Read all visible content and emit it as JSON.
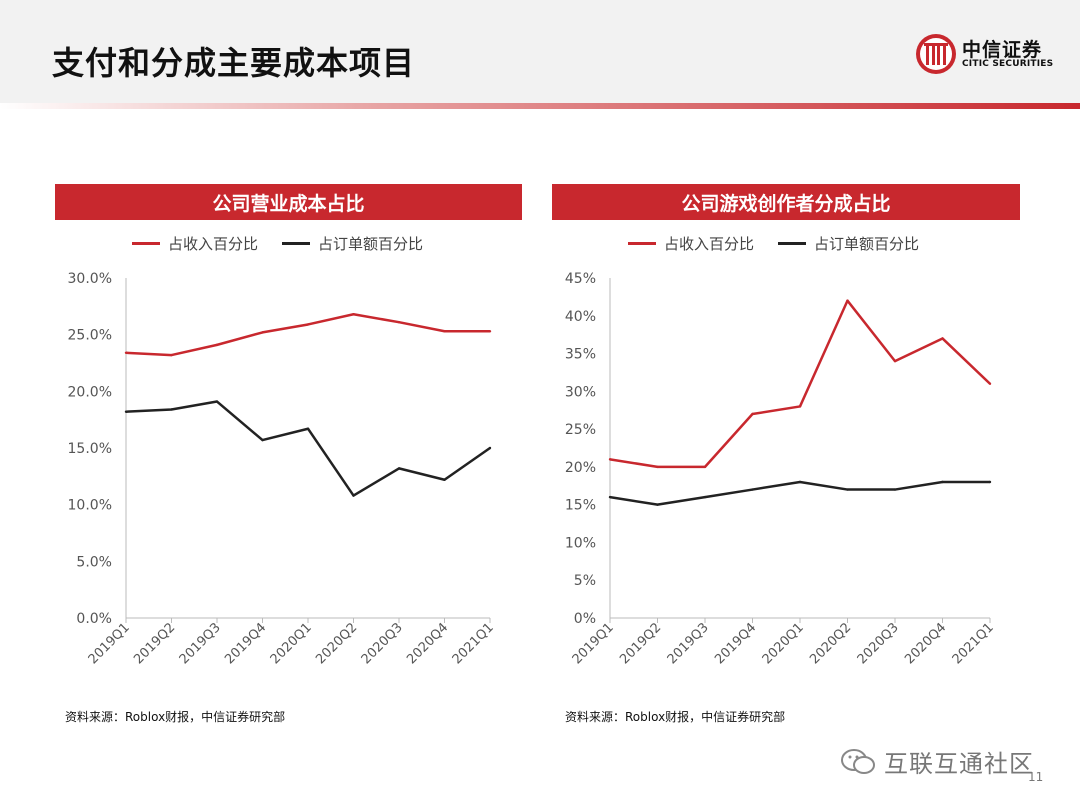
{
  "header": {
    "title": "支付和分成主要成本项目",
    "logo_cn": "中信证券",
    "logo_en": "CITIC SECURITIES"
  },
  "colors": {
    "red": "#c8282e",
    "black": "#222222"
  },
  "panels": [
    {
      "title": "公司营业成本占比",
      "source": "资料来源：Roblox财报，中信证券研究部",
      "legend": [
        "占收入百分比",
        "占订单额百分比"
      ]
    },
    {
      "title": "公司游戏创作者分成占比",
      "source": "资料来源：Roblox财报，中信证券研究部",
      "legend": [
        "占收入百分比",
        "占订单额百分比"
      ]
    }
  ],
  "chart_data": [
    {
      "type": "line",
      "title": "公司营业成本占比",
      "categories": [
        "2019Q1",
        "2019Q2",
        "2019Q3",
        "2019Q4",
        "2020Q1",
        "2020Q2",
        "2020Q3",
        "2020Q4",
        "2021Q1"
      ],
      "series": [
        {
          "name": "占收入百分比",
          "color": "#c8282e",
          "values": [
            23.4,
            23.2,
            24.1,
            25.2,
            25.9,
            26.8,
            26.1,
            25.3,
            25.3
          ]
        },
        {
          "name": "占订单额百分比",
          "color": "#222222",
          "values": [
            18.2,
            18.4,
            19.1,
            15.7,
            16.7,
            10.8,
            13.2,
            12.2,
            15.0
          ]
        }
      ],
      "ylim": [
        0,
        30
      ],
      "yticks": [
        0,
        5,
        10,
        15,
        20,
        25,
        30
      ],
      "ytick_labels": [
        "0.0%",
        "5.0%",
        "10.0%",
        "15.0%",
        "20.0%",
        "25.0%",
        "30.0%"
      ],
      "grid": false,
      "legend_position": "top"
    },
    {
      "type": "line",
      "title": "公司游戏创作者分成占比",
      "categories": [
        "2019Q1",
        "2019Q2",
        "2019Q3",
        "2019Q4",
        "2020Q1",
        "2020Q2",
        "2020Q3",
        "2020Q4",
        "2021Q1"
      ],
      "series": [
        {
          "name": "占收入百分比",
          "color": "#c8282e",
          "values": [
            21,
            20,
            20,
            27,
            28,
            42,
            34,
            37,
            31
          ]
        },
        {
          "name": "占订单额百分比",
          "color": "#222222",
          "values": [
            16,
            15,
            16,
            17,
            18,
            17,
            17,
            18,
            18
          ]
        }
      ],
      "ylim": [
        0,
        45
      ],
      "yticks": [
        0,
        5,
        10,
        15,
        20,
        25,
        30,
        35,
        40,
        45
      ],
      "ytick_labels": [
        "0%",
        "5%",
        "10%",
        "15%",
        "20%",
        "25%",
        "30%",
        "35%",
        "40%",
        "45%"
      ],
      "grid": false,
      "legend_position": "top"
    }
  ],
  "watermark": {
    "text": "互联互通社区",
    "page_number": "11"
  }
}
